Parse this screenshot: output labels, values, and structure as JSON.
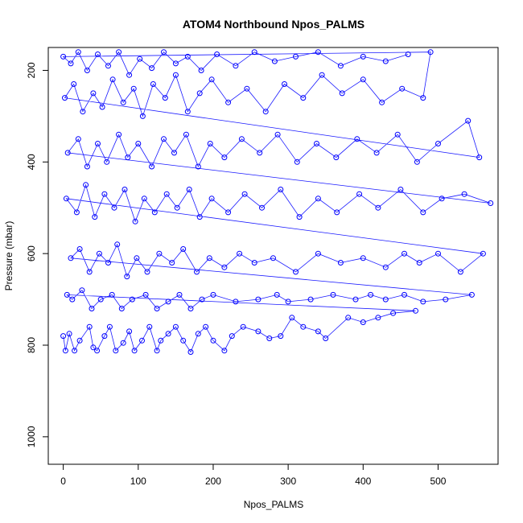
{
  "chart_data": {
    "type": "scatter",
    "title": "ATOM4 Northbound Npos_PALMS",
    "xlabel": "Npos_PALMS",
    "ylabel": "Pressure (mbar)",
    "xlim": [
      -20,
      580
    ],
    "ylim": [
      1060,
      150
    ],
    "y_reversed": true,
    "x_ticks": [
      0,
      100,
      200,
      300,
      400,
      500
    ],
    "y_ticks": [
      200,
      400,
      600,
      800,
      1000
    ],
    "grid": false,
    "legend": "none",
    "colors": {
      "series": "#0000ff",
      "axes": "#000000",
      "background": "#ffffff"
    },
    "series": [
      {
        "style": "points-and-lines",
        "points": [
          [
            0,
            780
          ],
          [
            3,
            812
          ],
          [
            8,
            775
          ],
          [
            15,
            812
          ],
          [
            22,
            790
          ],
          [
            35,
            760
          ],
          [
            40,
            805
          ],
          [
            45,
            812
          ],
          [
            55,
            780
          ],
          [
            62,
            760
          ],
          [
            70,
            812
          ],
          [
            80,
            795
          ],
          [
            88,
            770
          ],
          [
            95,
            812
          ],
          [
            105,
            790
          ],
          [
            115,
            760
          ],
          [
            125,
            812
          ],
          [
            130,
            790
          ],
          [
            140,
            775
          ],
          [
            150,
            760
          ],
          [
            160,
            790
          ],
          [
            170,
            815
          ],
          [
            180,
            775
          ],
          [
            190,
            760
          ],
          [
            200,
            790
          ],
          [
            215,
            812
          ],
          [
            225,
            780
          ],
          [
            240,
            760
          ],
          [
            260,
            770
          ],
          [
            275,
            785
          ],
          [
            290,
            780
          ],
          [
            305,
            740
          ],
          [
            320,
            760
          ],
          [
            340,
            770
          ],
          [
            350,
            785
          ],
          [
            380,
            740
          ],
          [
            400,
            750
          ],
          [
            420,
            740
          ],
          [
            440,
            730
          ],
          [
            470,
            725
          ],
          [
            5,
            690
          ],
          [
            12,
            700
          ],
          [
            25,
            680
          ],
          [
            38,
            720
          ],
          [
            50,
            700
          ],
          [
            65,
            690
          ],
          [
            78,
            720
          ],
          [
            92,
            700
          ],
          [
            110,
            690
          ],
          [
            125,
            720
          ],
          [
            140,
            705
          ],
          [
            155,
            690
          ],
          [
            170,
            720
          ],
          [
            185,
            700
          ],
          [
            200,
            690
          ],
          [
            230,
            705
          ],
          [
            260,
            700
          ],
          [
            285,
            690
          ],
          [
            300,
            705
          ],
          [
            330,
            700
          ],
          [
            360,
            690
          ],
          [
            390,
            700
          ],
          [
            410,
            690
          ],
          [
            430,
            700
          ],
          [
            455,
            690
          ],
          [
            480,
            705
          ],
          [
            510,
            700
          ],
          [
            545,
            690
          ],
          [
            10,
            610
          ],
          [
            22,
            590
          ],
          [
            35,
            640
          ],
          [
            48,
            600
          ],
          [
            60,
            620
          ],
          [
            72,
            580
          ],
          [
            85,
            650
          ],
          [
            98,
            610
          ],
          [
            112,
            640
          ],
          [
            128,
            600
          ],
          [
            145,
            620
          ],
          [
            160,
            590
          ],
          [
            178,
            640
          ],
          [
            195,
            610
          ],
          [
            215,
            630
          ],
          [
            235,
            600
          ],
          [
            255,
            620
          ],
          [
            280,
            610
          ],
          [
            310,
            640
          ],
          [
            340,
            600
          ],
          [
            370,
            620
          ],
          [
            400,
            610
          ],
          [
            430,
            630
          ],
          [
            455,
            600
          ],
          [
            475,
            620
          ],
          [
            500,
            600
          ],
          [
            530,
            640
          ],
          [
            560,
            600
          ],
          [
            4,
            480
          ],
          [
            18,
            510
          ],
          [
            30,
            450
          ],
          [
            42,
            520
          ],
          [
            55,
            470
          ],
          [
            68,
            500
          ],
          [
            82,
            460
          ],
          [
            96,
            530
          ],
          [
            108,
            480
          ],
          [
            122,
            510
          ],
          [
            138,
            470
          ],
          [
            152,
            500
          ],
          [
            168,
            460
          ],
          [
            182,
            520
          ],
          [
            198,
            480
          ],
          [
            220,
            510
          ],
          [
            242,
            470
          ],
          [
            265,
            500
          ],
          [
            290,
            460
          ],
          [
            315,
            520
          ],
          [
            340,
            480
          ],
          [
            365,
            510
          ],
          [
            395,
            470
          ],
          [
            420,
            500
          ],
          [
            450,
            460
          ],
          [
            480,
            510
          ],
          [
            505,
            480
          ],
          [
            535,
            470
          ],
          [
            570,
            490
          ],
          [
            6,
            380
          ],
          [
            20,
            350
          ],
          [
            32,
            410
          ],
          [
            46,
            360
          ],
          [
            58,
            400
          ],
          [
            74,
            340
          ],
          [
            86,
            390
          ],
          [
            100,
            360
          ],
          [
            118,
            410
          ],
          [
            134,
            350
          ],
          [
            148,
            380
          ],
          [
            164,
            340
          ],
          [
            180,
            410
          ],
          [
            196,
            360
          ],
          [
            215,
            390
          ],
          [
            238,
            350
          ],
          [
            262,
            380
          ],
          [
            286,
            340
          ],
          [
            312,
            400
          ],
          [
            338,
            360
          ],
          [
            364,
            390
          ],
          [
            392,
            350
          ],
          [
            418,
            380
          ],
          [
            446,
            340
          ],
          [
            472,
            400
          ],
          [
            500,
            360
          ],
          [
            540,
            310
          ],
          [
            555,
            390
          ],
          [
            2,
            260
          ],
          [
            14,
            230
          ],
          [
            26,
            290
          ],
          [
            40,
            250
          ],
          [
            52,
            280
          ],
          [
            66,
            220
          ],
          [
            80,
            270
          ],
          [
            94,
            240
          ],
          [
            106,
            300
          ],
          [
            120,
            230
          ],
          [
            136,
            260
          ],
          [
            150,
            210
          ],
          [
            166,
            290
          ],
          [
            182,
            250
          ],
          [
            198,
            220
          ],
          [
            220,
            270
          ],
          [
            245,
            240
          ],
          [
            270,
            290
          ],
          [
            295,
            230
          ],
          [
            320,
            260
          ],
          [
            345,
            210
          ],
          [
            372,
            250
          ],
          [
            400,
            220
          ],
          [
            425,
            270
          ],
          [
            452,
            240
          ],
          [
            480,
            260
          ],
          [
            490,
            160
          ],
          [
            0,
            170
          ],
          [
            10,
            185
          ],
          [
            20,
            160
          ],
          [
            32,
            200
          ],
          [
            46,
            165
          ],
          [
            60,
            190
          ],
          [
            74,
            160
          ],
          [
            88,
            210
          ],
          [
            102,
            175
          ],
          [
            118,
            195
          ],
          [
            134,
            160
          ],
          [
            150,
            185
          ],
          [
            166,
            170
          ],
          [
            184,
            200
          ],
          [
            205,
            165
          ],
          [
            230,
            190
          ],
          [
            255,
            160
          ],
          [
            282,
            180
          ],
          [
            310,
            170
          ],
          [
            340,
            160
          ],
          [
            370,
            190
          ],
          [
            400,
            170
          ],
          [
            430,
            180
          ],
          [
            460,
            165
          ]
        ]
      }
    ]
  }
}
